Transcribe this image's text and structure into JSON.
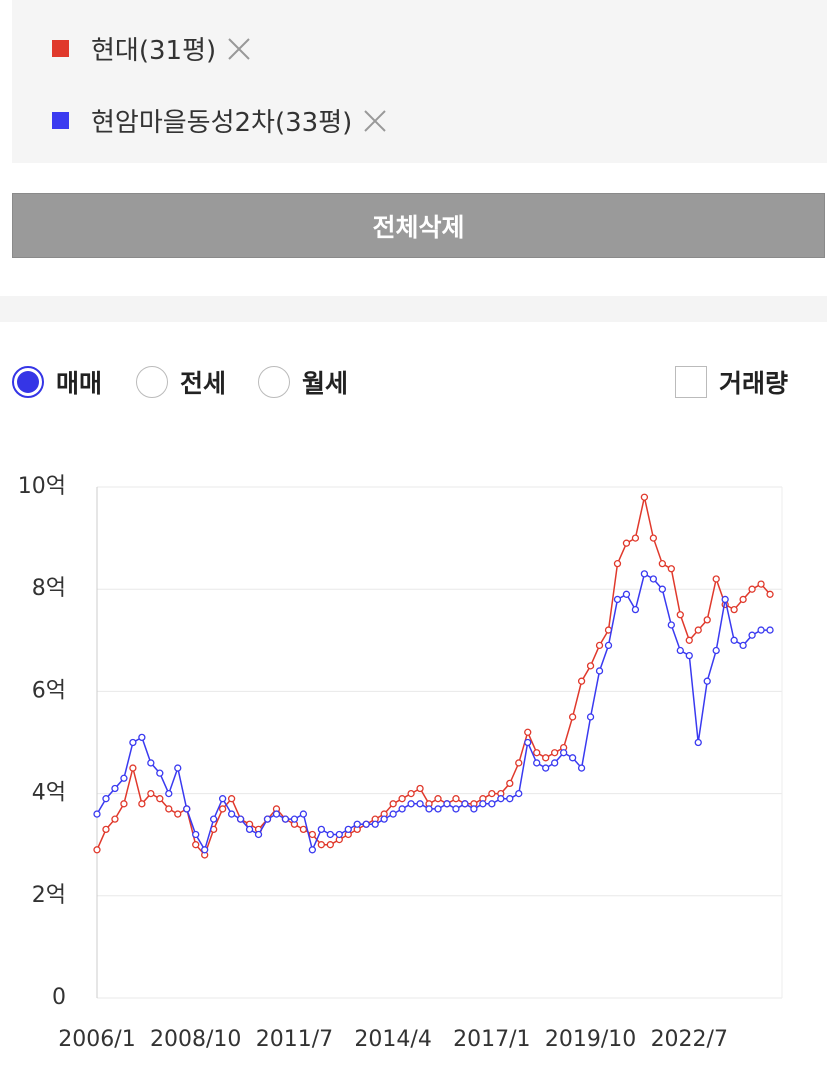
{
  "chart_data": {
    "type": "line",
    "x": [
      "2006/1",
      "2006/4",
      "2006/7",
      "2006/10",
      "2007/1",
      "2007/4",
      "2007/7",
      "2007/10",
      "2008/1",
      "2008/4",
      "2008/7",
      "2008/10",
      "2009/1",
      "2009/4",
      "2009/7",
      "2009/10",
      "2010/1",
      "2010/4",
      "2010/7",
      "2010/10",
      "2011/1",
      "2011/4",
      "2011/7",
      "2011/10",
      "2012/1",
      "2012/4",
      "2012/7",
      "2012/10",
      "2013/1",
      "2013/4",
      "2013/7",
      "2013/10",
      "2014/1",
      "2014/4",
      "2014/7",
      "2014/10",
      "2015/1",
      "2015/4",
      "2015/7",
      "2015/10",
      "2016/1",
      "2016/4",
      "2016/7",
      "2016/10",
      "2017/1",
      "2017/4",
      "2017/7",
      "2017/10",
      "2018/1",
      "2018/4",
      "2018/7",
      "2018/10",
      "2019/1",
      "2019/4",
      "2019/7",
      "2019/10",
      "2020/1",
      "2020/4",
      "2020/7",
      "2020/10",
      "2021/1",
      "2021/4",
      "2021/7",
      "2021/10",
      "2022/1",
      "2022/4",
      "2022/7",
      "2022/10",
      "2023/1",
      "2023/4",
      "2023/7",
      "2023/10",
      "2024/1",
      "2024/4",
      "2024/7",
      "2024/10"
    ],
    "series": [
      {
        "name": "현대(31평)",
        "color": "#e0392c",
        "values": [
          2.9,
          3.3,
          3.5,
          3.8,
          4.5,
          3.8,
          4.0,
          3.9,
          3.7,
          3.6,
          3.7,
          3.0,
          2.8,
          3.3,
          3.7,
          3.9,
          3.5,
          3.4,
          3.3,
          3.5,
          3.7,
          3.5,
          3.4,
          3.3,
          3.2,
          3.0,
          3.0,
          3.1,
          3.2,
          3.3,
          3.4,
          3.5,
          3.6,
          3.8,
          3.9,
          4.0,
          4.1,
          3.8,
          3.9,
          3.8,
          3.9,
          3.8,
          3.8,
          3.9,
          4.0,
          4.0,
          4.2,
          4.6,
          5.2,
          4.8,
          4.7,
          4.8,
          4.9,
          5.5,
          6.2,
          6.5,
          6.9,
          7.2,
          8.5,
          8.9,
          9.0,
          9.8,
          9.0,
          8.5,
          8.4,
          7.5,
          7.0,
          7.2,
          7.4,
          8.2,
          7.7,
          7.6,
          7.8,
          8.0,
          8.1,
          7.9
        ]
      },
      {
        "name": "현암마을동성2차(33평)",
        "color": "#3a3af0",
        "values": [
          3.6,
          3.9,
          4.1,
          4.3,
          5.0,
          5.1,
          4.6,
          4.4,
          4.0,
          4.5,
          3.7,
          3.2,
          2.9,
          3.5,
          3.9,
          3.6,
          3.5,
          3.3,
          3.2,
          3.5,
          3.6,
          3.5,
          3.5,
          3.6,
          2.9,
          3.3,
          3.2,
          3.2,
          3.3,
          3.4,
          3.4,
          3.4,
          3.5,
          3.6,
          3.7,
          3.8,
          3.8,
          3.7,
          3.7,
          3.8,
          3.7,
          3.8,
          3.7,
          3.8,
          3.8,
          3.9,
          3.9,
          4.0,
          5.0,
          4.6,
          4.5,
          4.6,
          4.8,
          4.7,
          4.5,
          5.5,
          6.4,
          6.9,
          7.8,
          7.9,
          7.6,
          8.3,
          8.2,
          8.0,
          7.3,
          6.8,
          6.7,
          5.0,
          6.2,
          6.8,
          7.8,
          7.0,
          6.9,
          7.1,
          7.2,
          7.2
        ]
      }
    ],
    "xlim": [
      "2006/1",
      "2025/2"
    ],
    "xticks": [
      "2006/1",
      "2008/10",
      "2011/7",
      "2014/4",
      "2017/1",
      "2019/10",
      "2022/7"
    ],
    "ylim": [
      0,
      10
    ],
    "yticks": [
      0,
      {
        "value": 2,
        "label": "2억"
      },
      {
        "value": 4,
        "label": "4억"
      },
      {
        "value": 6,
        "label": "6억"
      },
      {
        "value": 8,
        "label": "8억"
      },
      {
        "value": 10,
        "label": "10억"
      }
    ],
    "grid": true
  },
  "controls": {
    "delete_button": "전체삭제",
    "radios": [
      "매매",
      "전세",
      "월세"
    ],
    "selected_radio": 0,
    "checkbox": "거래량"
  }
}
